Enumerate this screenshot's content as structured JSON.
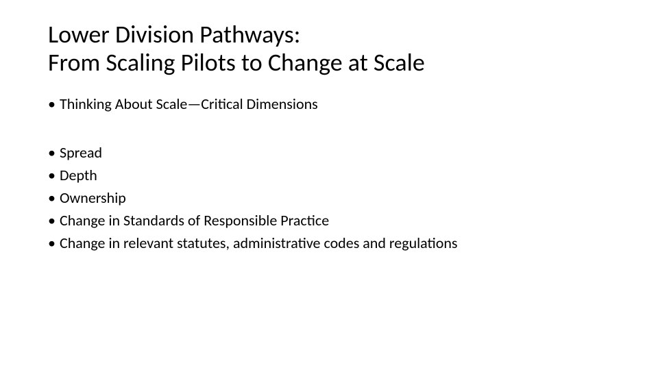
{
  "title": {
    "line1": "Lower Division Pathways:",
    "line2": "From Scaling Pilots to Change at Scale"
  },
  "section1": {
    "items": [
      "Thinking About Scale—Critical Dimensions"
    ]
  },
  "section2": {
    "items": [
      "Spread",
      "Depth",
      "Ownership",
      "Change in Standards of Responsible Practice",
      "Change in relevant statutes, administrative codes and regulations"
    ]
  },
  "styling": {
    "background_color": "#ffffff",
    "text_color": "#000000",
    "title_fontsize": 36,
    "body_fontsize": 22,
    "bullet_char": "•",
    "font_family": "Calibri"
  }
}
